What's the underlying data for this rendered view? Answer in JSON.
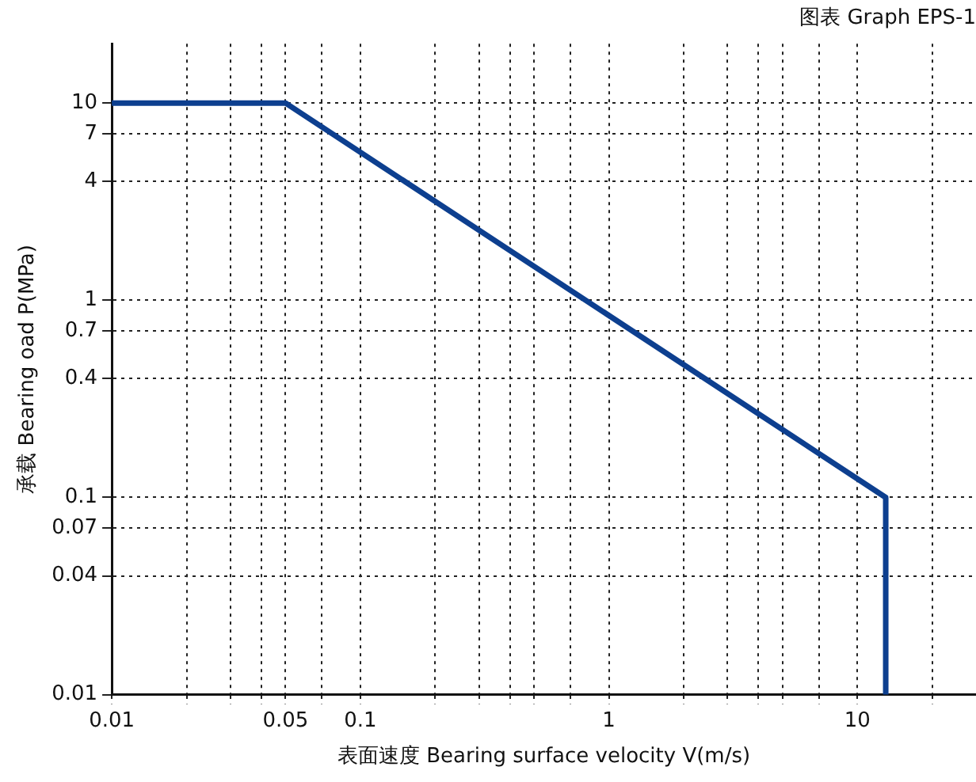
{
  "chart_data": {
    "type": "line",
    "title": "图表 Graph EPS-1",
    "xlabel": "表面速度 Bearing surface velocity V(m/s)",
    "ylabel": "承载 Bearing oad P(MPa)",
    "log": "xy",
    "grid": true,
    "legend": false,
    "marker": "none",
    "line_style": "solid",
    "xlim": [
      0.01,
      30
    ],
    "xticks": [
      0.01,
      {
        "value": 0.02,
        "label": null
      },
      {
        "value": 0.03,
        "label": null
      },
      {
        "value": 0.04,
        "label": null
      },
      0.05,
      {
        "value": 0.07,
        "label": null
      },
      0.1,
      {
        "value": 0.2,
        "label": null
      },
      {
        "value": 0.3,
        "label": null
      },
      {
        "value": 0.4,
        "label": null
      },
      {
        "value": 0.5,
        "label": null
      },
      {
        "value": 0.7,
        "label": null
      },
      1,
      {
        "value": 2,
        "label": null
      },
      {
        "value": 3,
        "label": null
      },
      {
        "value": 4,
        "label": null
      },
      {
        "value": 5,
        "label": null
      },
      {
        "value": 7,
        "label": null
      },
      10,
      {
        "value": 20,
        "label": null
      }
    ],
    "ylim": [
      0.01,
      20
    ],
    "yticks": [
      0.01,
      0.04,
      0.07,
      0.1,
      0.4,
      0.7,
      1,
      4,
      7,
      10
    ],
    "x": [
      0.01,
      0.05,
      13,
      13
    ],
    "series": [
      {
        "color": "#0d3f8f",
        "values": [
          10,
          10,
          0.1,
          0.01
        ]
      }
    ]
  }
}
